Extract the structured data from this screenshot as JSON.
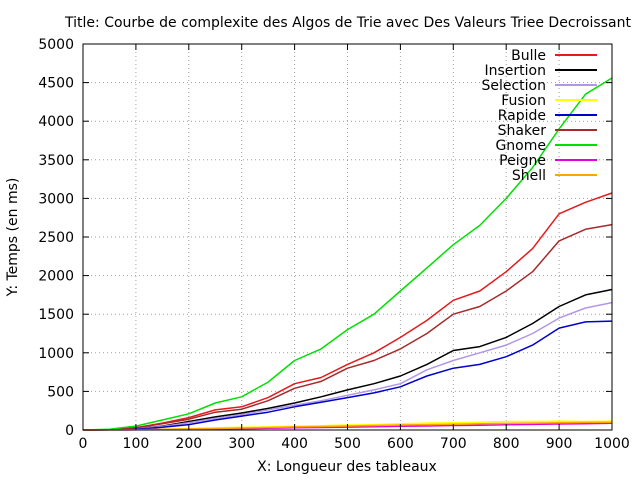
{
  "chart_data": {
    "type": "line",
    "title": "Title: Courbe de complexite des Algos de Trie avec Des Valeurs Triee Decroissant",
    "xlabel": "X: Longueur des tableaux",
    "ylabel": "Y: Temps (en ms)",
    "xlim": [
      0,
      1000
    ],
    "ylim": [
      0,
      5000
    ],
    "x_ticks": [
      "0",
      "100",
      "200",
      "300",
      "400",
      "500",
      "600",
      "700",
      "800",
      "900",
      "1000"
    ],
    "y_ticks": [
      "0",
      "500",
      "1000",
      "1500",
      "2000",
      "2500",
      "3000",
      "3500",
      "4000",
      "4500",
      "5000"
    ],
    "grid": true,
    "legend_position": "top-right",
    "x": [
      0,
      50,
      100,
      150,
      200,
      250,
      300,
      350,
      400,
      450,
      500,
      550,
      600,
      650,
      700,
      750,
      800,
      850,
      900,
      950,
      1000
    ],
    "series": [
      {
        "name": "Bulle",
        "color": "#e41a1c",
        "values": [
          0,
          5,
          30,
          90,
          160,
          260,
          300,
          420,
          600,
          680,
          850,
          1000,
          1200,
          1420,
          1680,
          1800,
          2050,
          2350,
          2800,
          2950,
          3070
        ]
      },
      {
        "name": "Insertion",
        "color": "#000000",
        "values": [
          0,
          3,
          15,
          50,
          110,
          170,
          220,
          280,
          350,
          430,
          520,
          600,
          700,
          850,
          1030,
          1080,
          1200,
          1380,
          1600,
          1750,
          1820
        ]
      },
      {
        "name": "Selection",
        "color": "#b197e8",
        "values": [
          0,
          3,
          15,
          45,
          95,
          150,
          200,
          260,
          320,
          380,
          450,
          520,
          600,
          780,
          900,
          1000,
          1100,
          1250,
          1450,
          1580,
          1650
        ]
      },
      {
        "name": "Fusion",
        "color": "#ffff00",
        "values": [
          0,
          2,
          5,
          10,
          20,
          30,
          35,
          40,
          50,
          55,
          65,
          70,
          80,
          90,
          95,
          100,
          110,
          110,
          115,
          110,
          115
        ]
      },
      {
        "name": "Rapide",
        "color": "#0000cc",
        "values": [
          0,
          2,
          10,
          35,
          70,
          130,
          180,
          230,
          300,
          360,
          420,
          480,
          560,
          700,
          800,
          850,
          950,
          1100,
          1320,
          1400,
          1410
        ]
      },
      {
        "name": "Shaker",
        "color": "#a52a2a",
        "values": [
          0,
          5,
          30,
          80,
          140,
          230,
          270,
          380,
          540,
          630,
          800,
          900,
          1050,
          1250,
          1500,
          1600,
          1800,
          2050,
          2450,
          2600,
          2660
        ]
      },
      {
        "name": "Gnome",
        "color": "#00e000",
        "values": [
          0,
          10,
          50,
          130,
          210,
          350,
          430,
          620,
          900,
          1050,
          1300,
          1500,
          1800,
          2100,
          2400,
          2650,
          3000,
          3400,
          3900,
          4350,
          4560
        ]
      },
      {
        "name": "Peigne",
        "color": "#e000e0",
        "values": [
          0,
          1,
          3,
          6,
          10,
          14,
          18,
          22,
          28,
          32,
          38,
          42,
          48,
          52,
          58,
          62,
          68,
          72,
          78,
          82,
          88
        ]
      },
      {
        "name": "Shell",
        "color": "#ffa500",
        "values": [
          0,
          1,
          4,
          8,
          14,
          20,
          26,
          32,
          40,
          45,
          52,
          58,
          65,
          70,
          75,
          80,
          85,
          90,
          95,
          98,
          100
        ]
      }
    ]
  }
}
